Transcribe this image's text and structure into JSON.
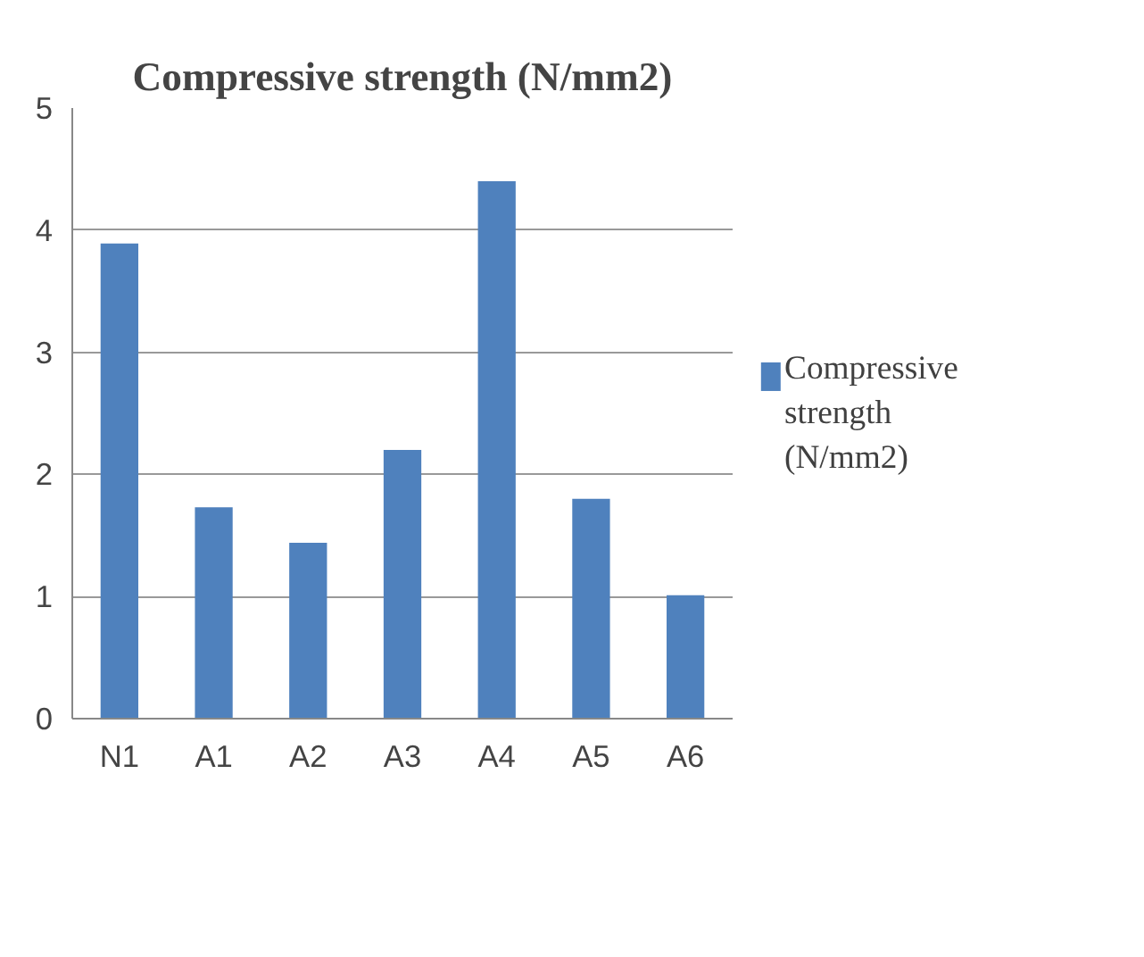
{
  "chart_data": {
    "type": "bar",
    "title": "Compressive strength (N/mm2)",
    "categories": [
      "N1",
      "A1",
      "A2",
      "A3",
      "A4",
      "A5",
      "A6"
    ],
    "series": [
      {
        "name": "Compressive strength (N/mm2)",
        "color": "#4f81bd",
        "values": [
          3.89,
          1.73,
          1.44,
          2.2,
          4.4,
          1.8,
          1.01
        ]
      }
    ],
    "ylim": [
      0,
      5
    ],
    "yticks": [
      0,
      1,
      2,
      3,
      4,
      5
    ],
    "grid": "y",
    "legend": "right"
  }
}
